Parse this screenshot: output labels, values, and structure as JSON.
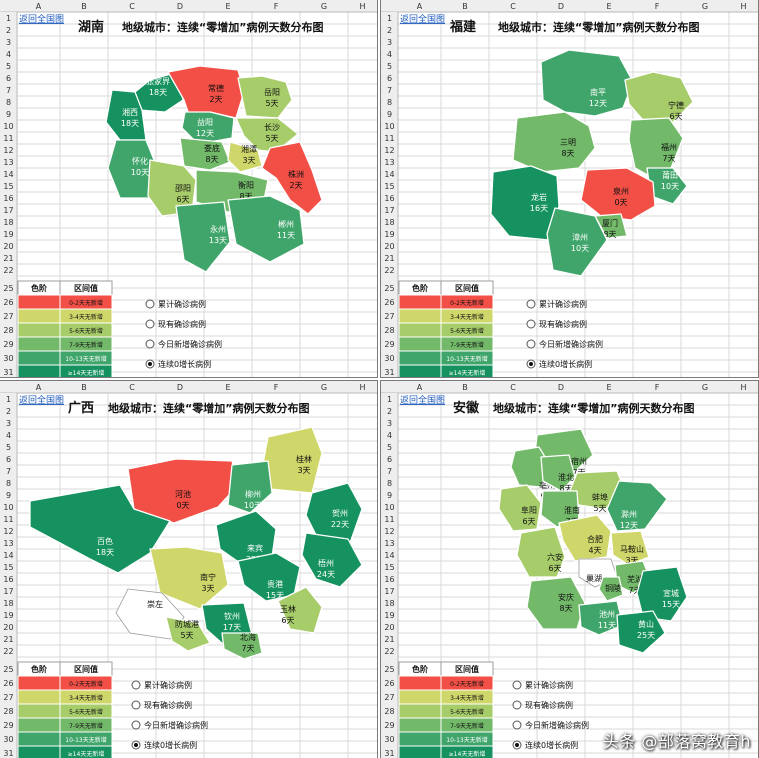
{
  "colors": {
    "c0": "#F24F46",
    "c1": "#CFD76A",
    "c2": "#A7CC6A",
    "c3": "#73B96A",
    "c4": "#3FA56A",
    "c5": "#15925F",
    "none": "#FFFFFF"
  },
  "columns": [
    "A",
    "B",
    "C",
    "D",
    "E",
    "F",
    "G",
    "H"
  ],
  "legend": {
    "header_color": "色阶",
    "header_range": "区间值",
    "rows": [
      "0-2天无新增",
      "3-4天无新增",
      "5-6天无新增",
      "7-9天无新增",
      "10-13天无新增",
      "≥14天无新增"
    ],
    "row_numbers": [
      "25",
      "26",
      "27",
      "28",
      "29",
      "30",
      "31"
    ]
  },
  "radio_options": [
    "累计确诊病例",
    "现有确诊病例",
    "今日新增确诊病例",
    "连续0增长病例"
  ],
  "selected_option": 3,
  "back_link": "返回全国图",
  "watermark": "头条 @部落窝教育h",
  "chart_data": [
    {
      "type": "choropleth",
      "province": "湖南",
      "title": "地级城市：连续“零增加”病例天数分布图",
      "regions": [
        {
          "name": "张家界",
          "value": "18天",
          "level": 5
        },
        {
          "name": "常德",
          "value": "2天",
          "level": 0
        },
        {
          "name": "岳阳",
          "value": "5天",
          "level": 2
        },
        {
          "name": "湘西",
          "value": "18天",
          "level": 5
        },
        {
          "name": "益阳",
          "value": "12天",
          "level": 4
        },
        {
          "name": "长沙",
          "value": "5天",
          "level": 2
        },
        {
          "name": "怀化",
          "value": "10天",
          "level": 4
        },
        {
          "name": "娄底",
          "value": "8天",
          "level": 3
        },
        {
          "name": "湘潭",
          "value": "3天",
          "level": 1
        },
        {
          "name": "株洲",
          "value": "2天",
          "level": 0
        },
        {
          "name": "邵阳",
          "value": "6天",
          "level": 2
        },
        {
          "name": "衡阳",
          "value": "8天",
          "level": 3
        },
        {
          "name": "永州",
          "value": "13天",
          "level": 4
        },
        {
          "name": "郴州",
          "value": "11天",
          "level": 4
        }
      ]
    },
    {
      "type": "choropleth",
      "province": "福建",
      "title": "地级城市：连续“零增加”病例天数分布图",
      "regions": [
        {
          "name": "南平",
          "value": "12天",
          "level": 4
        },
        {
          "name": "宁德",
          "value": "6天",
          "level": 2
        },
        {
          "name": "三明",
          "value": "8天",
          "level": 3
        },
        {
          "name": "福州",
          "value": "7天",
          "level": 3
        },
        {
          "name": "莆田",
          "value": "10天",
          "level": 4
        },
        {
          "name": "龙岩",
          "value": "16天",
          "level": 5
        },
        {
          "name": "泉州",
          "value": "0天",
          "level": 0
        },
        {
          "name": "厦门",
          "value": "8天",
          "level": 3
        },
        {
          "name": "漳州",
          "value": "10天",
          "level": 4
        }
      ]
    },
    {
      "type": "choropleth",
      "province": "广西",
      "title": "地级城市：连续“零增加”病例天数分布图",
      "regions": [
        {
          "name": "桂林",
          "value": "3天",
          "level": 1
        },
        {
          "name": "河池",
          "value": "0天",
          "level": 0
        },
        {
          "name": "柳州",
          "value": "10天",
          "level": 4
        },
        {
          "name": "贺州",
          "value": "22天",
          "level": 5
        },
        {
          "name": "百色",
          "value": "18天",
          "level": 5
        },
        {
          "name": "来宾",
          "value": "32天",
          "level": 5
        },
        {
          "name": "梧州",
          "value": "24天",
          "level": 5
        },
        {
          "name": "南宁",
          "value": "3天",
          "level": 1
        },
        {
          "name": "贵港",
          "value": "15天",
          "level": 5
        },
        {
          "name": "崇左",
          "value": "",
          "level": -1
        },
        {
          "name": "玉林",
          "value": "6天",
          "level": 2
        },
        {
          "name": "防城港",
          "value": "5天",
          "level": 2
        },
        {
          "name": "钦州",
          "value": "17天",
          "level": 5
        },
        {
          "name": "北海",
          "value": "7天",
          "level": 3
        }
      ]
    },
    {
      "type": "choropleth",
      "province": "安徽",
      "title": "地级城市：连续“零增加”病例天数分布图",
      "regions": [
        {
          "name": "宿州",
          "value": "7天",
          "level": 3
        },
        {
          "name": "亳州",
          "value": "9天",
          "level": 3
        },
        {
          "name": "淮北",
          "value": "8天",
          "level": 3
        },
        {
          "name": "阜阳",
          "value": "6天",
          "level": 2
        },
        {
          "name": "蚌埠",
          "value": "5天",
          "level": 2
        },
        {
          "name": "淮南",
          "value": "7天",
          "level": 3
        },
        {
          "name": "滁州",
          "value": "12天",
          "level": 4
        },
        {
          "name": "六安",
          "value": "6天",
          "level": 2
        },
        {
          "name": "合肥",
          "value": "4天",
          "level": 1
        },
        {
          "name": "马鞍山",
          "value": "3天",
          "level": 1
        },
        {
          "name": "巢湖",
          "value": "",
          "level": -1
        },
        {
          "name": "芜湖",
          "value": "7天",
          "level": 3
        },
        {
          "name": "铜陵",
          "value": "",
          "level": 3
        },
        {
          "name": "安庆",
          "value": "8天",
          "level": 3
        },
        {
          "name": "宣城",
          "value": "15天",
          "level": 5
        },
        {
          "name": "池州",
          "value": "11天",
          "level": 4
        },
        {
          "name": "黄山",
          "value": "25天",
          "level": 5
        }
      ]
    }
  ]
}
